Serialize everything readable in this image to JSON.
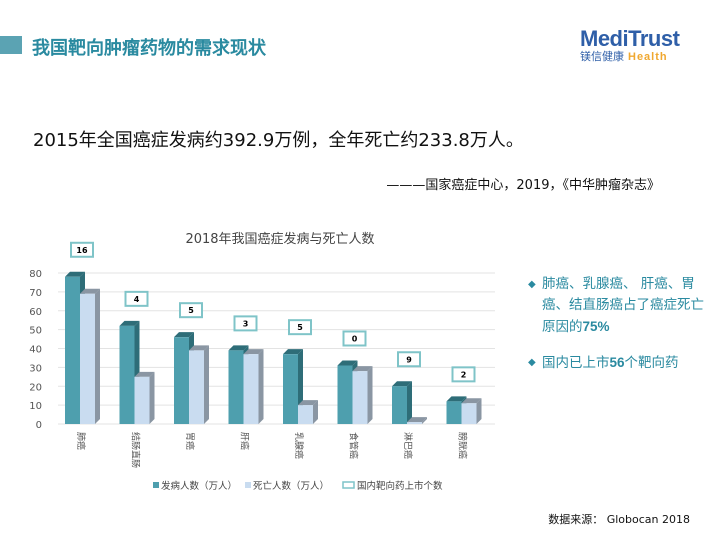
{
  "header": {
    "title": "我国靶向肿瘤药物的需求现状",
    "logo": {
      "line1": "MediTrust",
      "line2_cn": "镁信健康",
      "line2_en": "Health"
    }
  },
  "headline": "2015年全国癌症发病约392.9万例，全年死亡约233.8万人。",
  "citation": "———国家癌症中心，2019，《中华肿瘤杂志》",
  "bullets": [
    {
      "text": "肺癌、乳腺癌、 肝癌、胃癌、结直肠癌占了癌症死亡原因的",
      "strong": "75%"
    },
    {
      "text": "国内已上市",
      "strong": "56",
      "tail": "个靶向药"
    }
  ],
  "footer": "数据来源： Globocan 2018",
  "colors": {
    "incidence": "#4e9fae",
    "deaths": "#c9dcf0",
    "drugs_box": "#7fc4c8",
    "title": "#2a8aa0"
  },
  "chart_data": {
    "type": "bar",
    "title": "2018年我国癌症发病与死亡人数",
    "categories": [
      "肺癌",
      "结肠直肠",
      "胃癌",
      "肝癌",
      "乳腺癌",
      "食管癌",
      "淋巴癌",
      "膀胱癌"
    ],
    "series": [
      {
        "name": "发病人数（万人）",
        "values": [
          78,
          52,
          46,
          39,
          37,
          31,
          20,
          12
        ]
      },
      {
        "name": "死亡人数（万人）",
        "values": [
          69,
          25,
          39,
          37,
          10,
          28,
          1,
          11
        ]
      },
      {
        "name": "国内靶向药上市个数",
        "values": [
          16,
          4,
          5,
          3,
          5,
          0,
          9,
          2
        ]
      }
    ],
    "ylim": [
      0,
      80
    ],
    "yticks": [
      0,
      10,
      20,
      30,
      40,
      50,
      60,
      70,
      80
    ],
    "grid": true,
    "legend": "bottom"
  }
}
